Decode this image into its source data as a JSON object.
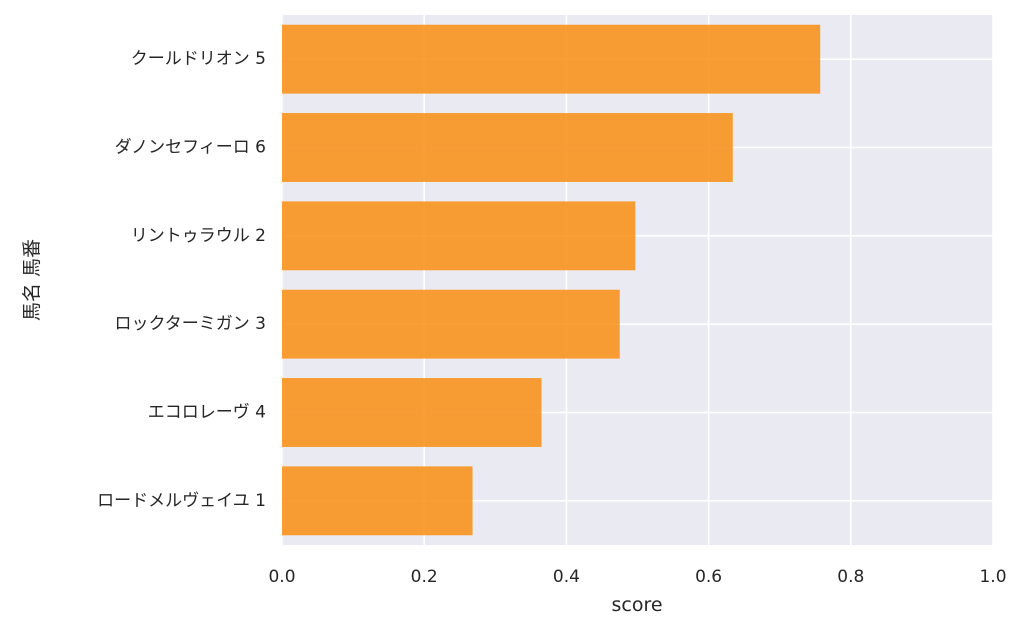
{
  "chart_data": {
    "type": "bar",
    "orientation": "horizontal",
    "title": "",
    "xlabel": "score",
    "ylabel": "馬名 馬番",
    "xlim": [
      0,
      1.0
    ],
    "xticks": [
      "0.0",
      "0.2",
      "0.4",
      "0.6",
      "0.8",
      "1.0"
    ],
    "grid": true,
    "bar_color": "#f7931e",
    "background_color": "#eaeaf2",
    "categories": [
      "クールドリオン 5",
      "ダノンセフィーロ 6",
      "リントゥラウル 2",
      "ロックターミガン 3",
      "エコロレーヴ 4",
      "ロードメルヴェイユ 1"
    ],
    "values": [
      0.757,
      0.634,
      0.497,
      0.475,
      0.365,
      0.268
    ]
  }
}
